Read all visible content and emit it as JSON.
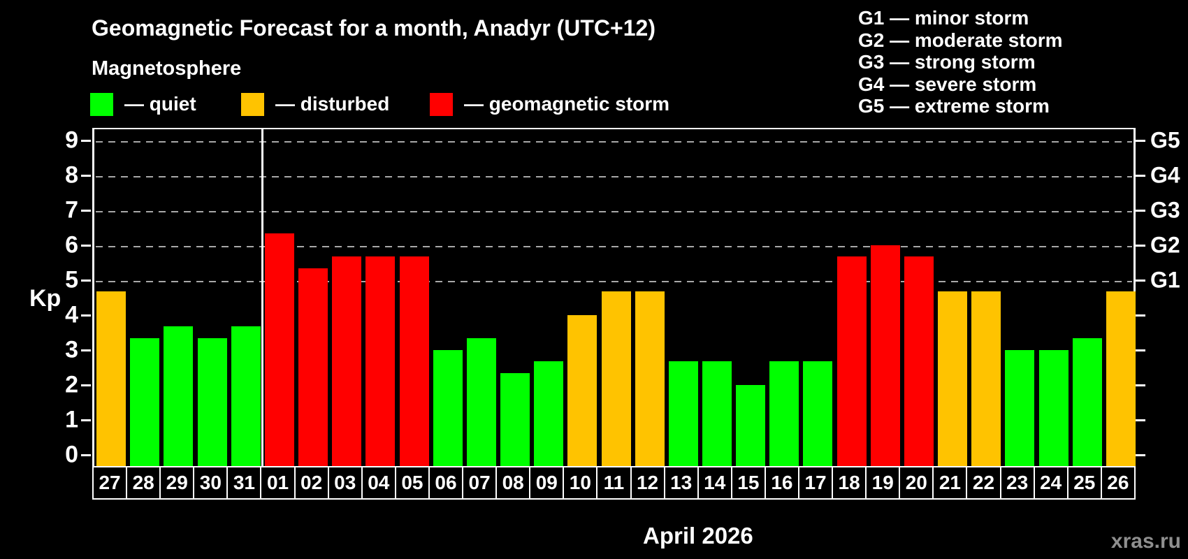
{
  "header": {
    "title": "Geomagnetic Forecast for a month, Anadyr (UTC+12)",
    "subtitle": "Magnetosphere"
  },
  "legend": {
    "items": [
      {
        "key": "quiet",
        "label": "— quiet",
        "color": "#00ff00"
      },
      {
        "key": "disturbed",
        "label": "— disturbed",
        "color": "#ffc300"
      },
      {
        "key": "storm",
        "label": "— geomagnetic storm",
        "color": "#ff0000"
      }
    ]
  },
  "g_scale_legend": {
    "lines": [
      "G1 — minor storm",
      "G2 — moderate storm",
      "G3 — strong storm",
      "G4 — severe storm",
      "G5 — extreme storm"
    ]
  },
  "chart_data": {
    "type": "bar",
    "title": "Geomagnetic Forecast for a month, Anadyr (UTC+12)",
    "ylabel": "Kp",
    "xlabel": "April 2026",
    "ylim": [
      0,
      9
    ],
    "yticks": [
      0,
      1,
      2,
      3,
      4,
      5,
      6,
      7,
      8,
      9
    ],
    "gridlines_at": [
      5,
      6,
      7,
      8,
      9
    ],
    "grid": "dashed-horizontal",
    "right_axis_labels": [
      {
        "value": 5,
        "label": "G1"
      },
      {
        "value": 6,
        "label": "G2"
      },
      {
        "value": 7,
        "label": "G3"
      },
      {
        "value": 8,
        "label": "G4"
      },
      {
        "value": 9,
        "label": "G5"
      }
    ],
    "categories": [
      "27",
      "28",
      "29",
      "30",
      "31",
      "01",
      "02",
      "03",
      "04",
      "05",
      "06",
      "07",
      "08",
      "09",
      "10",
      "11",
      "12",
      "13",
      "14",
      "15",
      "16",
      "17",
      "18",
      "19",
      "20",
      "21",
      "22",
      "23",
      "24",
      "25",
      "26"
    ],
    "values": [
      4.67,
      3.33,
      3.67,
      3.33,
      3.67,
      6.33,
      5.33,
      5.67,
      5.67,
      5.67,
      3.0,
      3.33,
      2.33,
      2.67,
      4.0,
      4.67,
      4.67,
      2.67,
      2.67,
      2.0,
      2.67,
      2.67,
      5.67,
      6.0,
      5.67,
      4.67,
      4.67,
      3.0,
      3.0,
      3.33,
      4.67
    ],
    "conditions": [
      "disturbed",
      "quiet",
      "quiet",
      "quiet",
      "quiet",
      "storm",
      "storm",
      "storm",
      "storm",
      "storm",
      "quiet",
      "quiet",
      "quiet",
      "quiet",
      "disturbed",
      "disturbed",
      "disturbed",
      "quiet",
      "quiet",
      "quiet",
      "quiet",
      "quiet",
      "storm",
      "storm",
      "storm",
      "disturbed",
      "disturbed",
      "quiet",
      "quiet",
      "quiet",
      "disturbed"
    ],
    "condition_colors": {
      "quiet": "#00ff00",
      "disturbed": "#ffc300",
      "storm": "#ff0000"
    },
    "month_boundary_after_index": 4
  },
  "footer": {
    "month_label": "April 2026",
    "watermark": "xras.ru"
  }
}
